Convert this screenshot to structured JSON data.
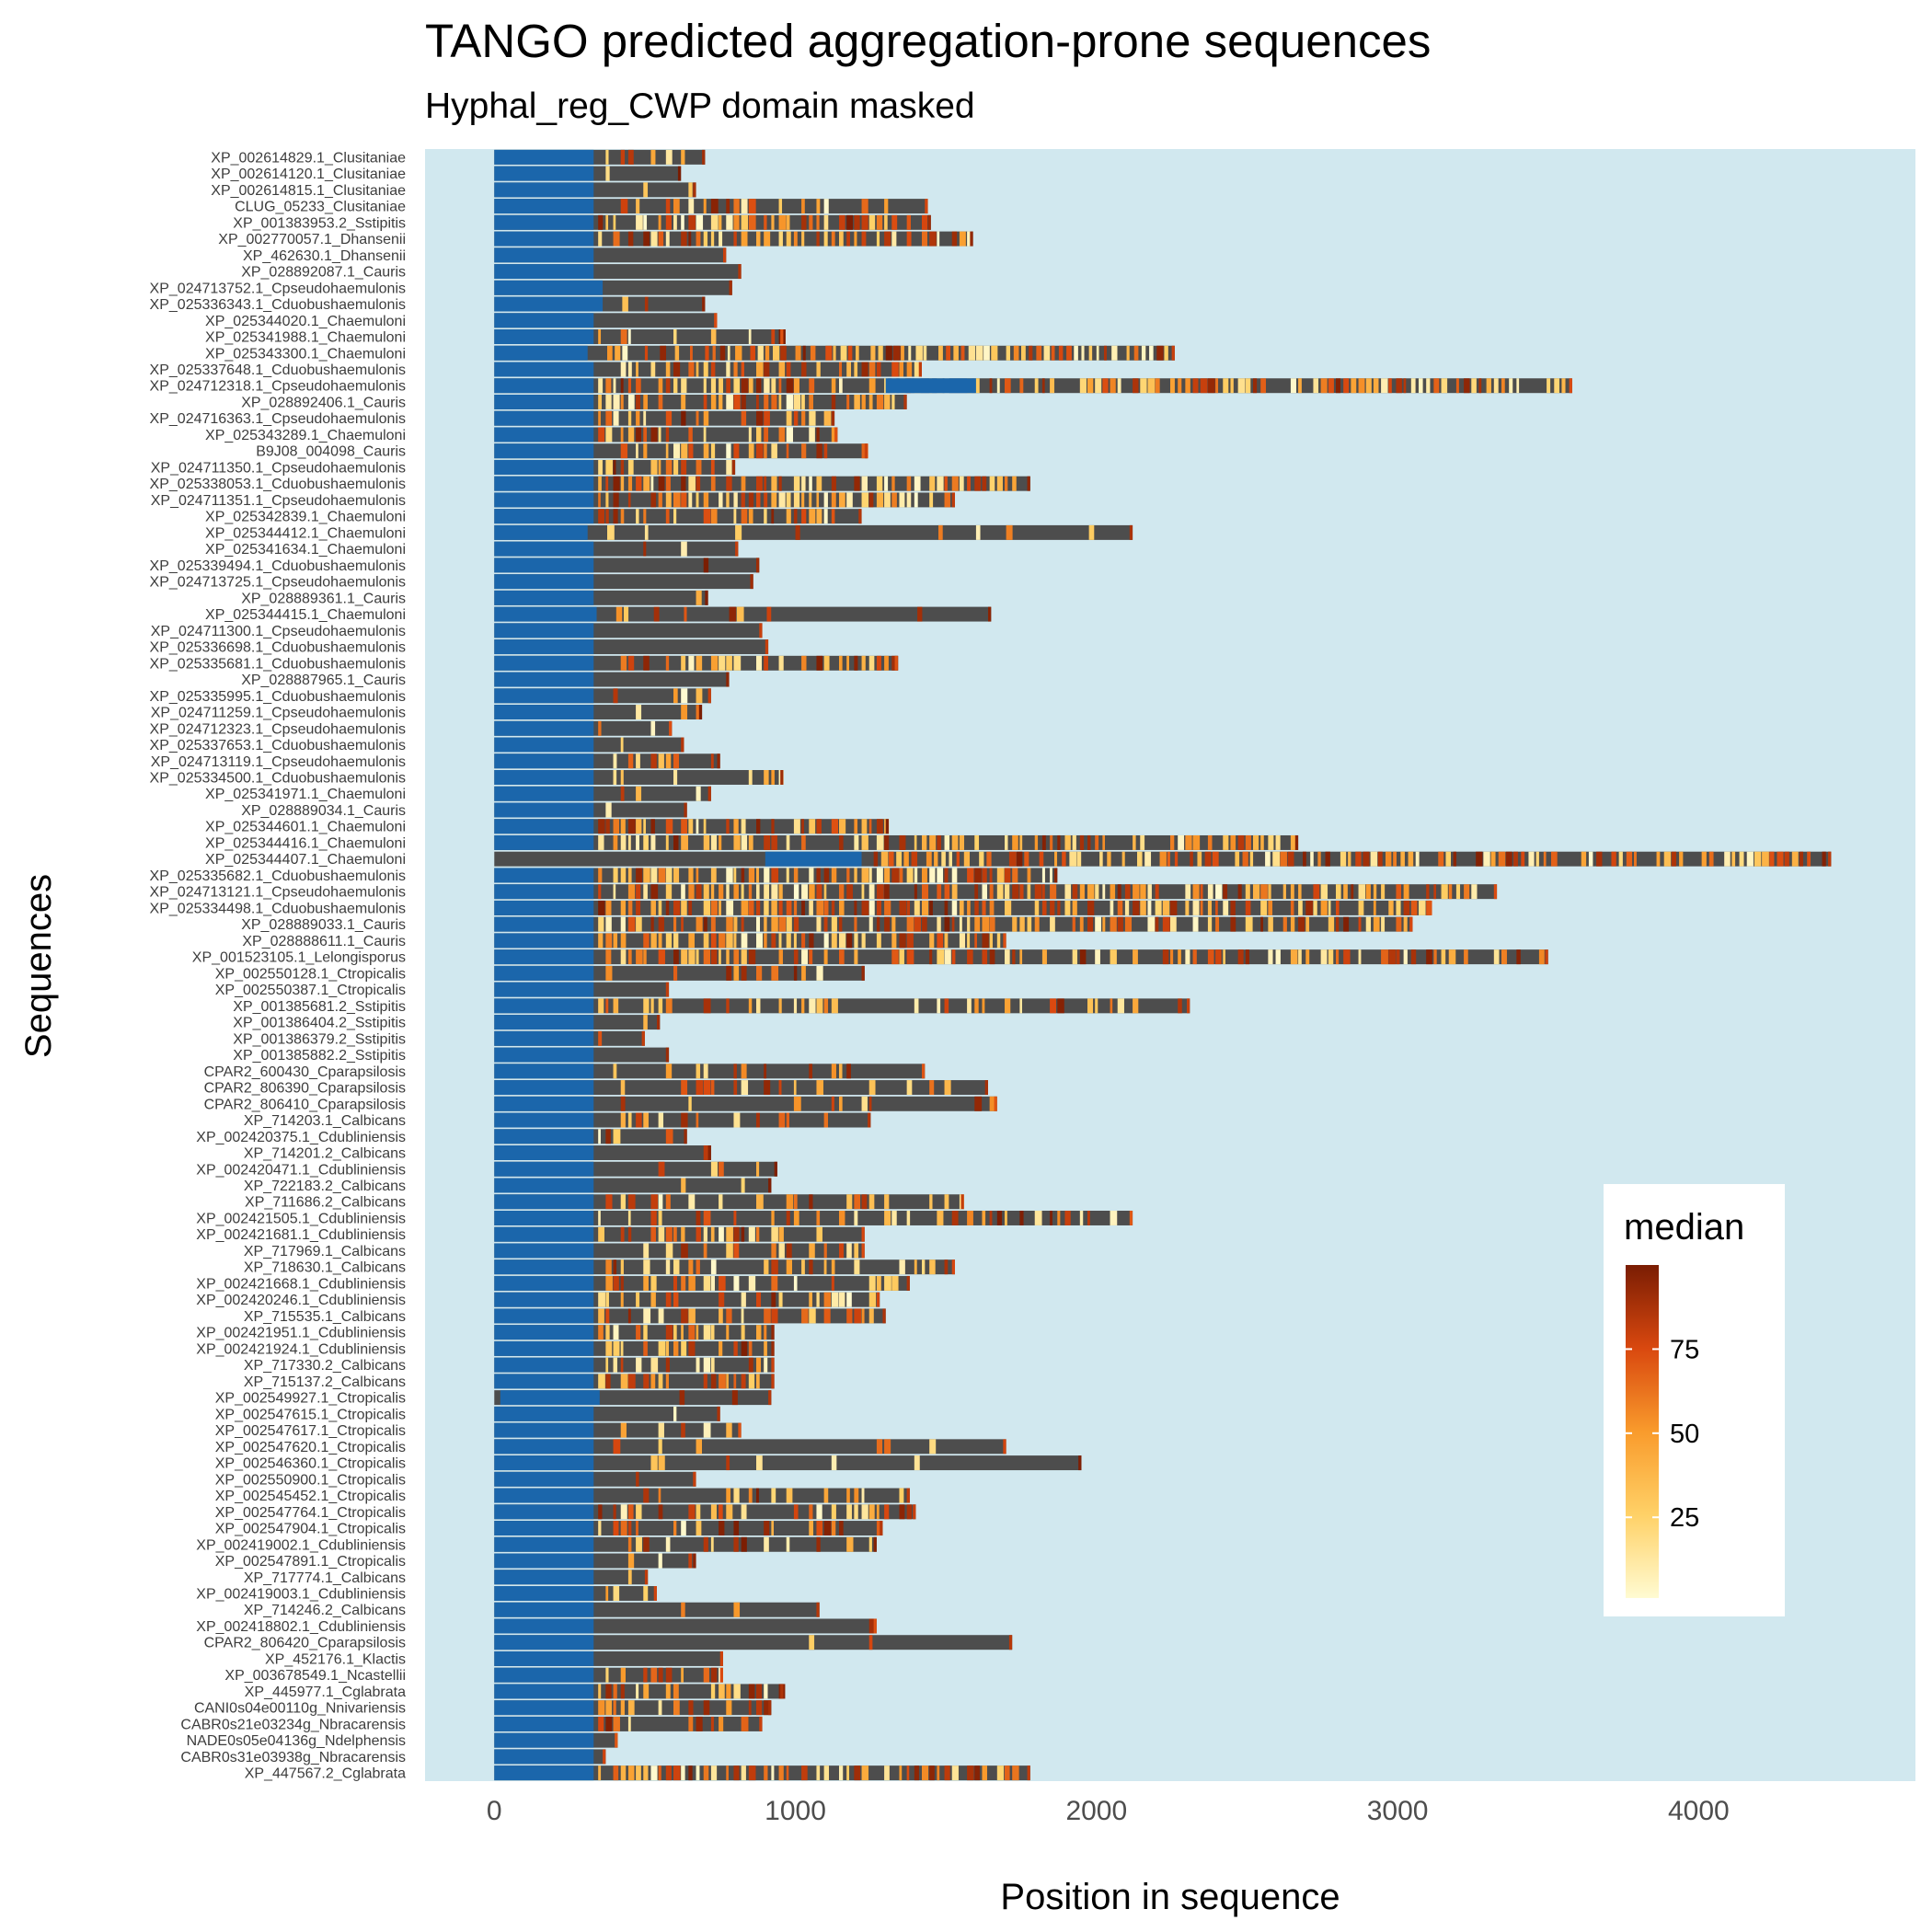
{
  "chart_data": {
    "type": "heatmap",
    "title": "TANGO predicted aggregation-prone sequences",
    "subtitle": "Hyphal_reg_CWP domain masked",
    "xlabel": "Position in sequence",
    "ylabel": "Sequences",
    "xlim": [
      -230,
      4720
    ],
    "x_ticks": [
      0,
      1000,
      2000,
      3000,
      4000
    ],
    "x_tick_labels": [
      "0",
      "1000",
      "2000",
      "3000",
      "4000"
    ],
    "grid": false,
    "legend": {
      "title": "median",
      "position": "right-bottom-inset",
      "range": [
        1,
        100
      ],
      "ticks": [
        25,
        50,
        75
      ],
      "tick_labels": [
        "25",
        "50",
        "75"
      ]
    },
    "colors": {
      "panel_background": "#d1e8ef",
      "sequence_bar": "#4d4d4d",
      "masked_domain": "#1b66ab",
      "scale_low": "#fffbd2",
      "scale_25": "#ffd167",
      "scale_50": "#f99b2c",
      "scale_75": "#d9480f",
      "scale_high": "#7a1d03"
    },
    "sequences": [
      {
        "name": "XP_002614829.1_Clusitaniae",
        "length": 700,
        "domain": [
          0,
          330
        ],
        "density": 0.5,
        "seed": 11
      },
      {
        "name": "XP_002614120.1_Clusitaniae",
        "length": 620,
        "domain": [
          0,
          330
        ],
        "density": 0.1,
        "seed": 12
      },
      {
        "name": "XP_002614815.1_Clusitaniae",
        "length": 670,
        "domain": [
          0,
          330
        ],
        "density": 0.1,
        "seed": 13
      },
      {
        "name": "CLUG_05233_Clusitaniae",
        "length": 1440,
        "domain": [
          0,
          330
        ],
        "density": 0.4,
        "seed": 14
      },
      {
        "name": "XP_001383953.2_Sstipitis",
        "length": 1450,
        "domain": [
          0,
          330
        ],
        "density": 0.8,
        "seed": 15
      },
      {
        "name": "XP_002770057.1_Dhansenii",
        "length": 1590,
        "domain": [
          0,
          330
        ],
        "density": 0.8,
        "seed": 16
      },
      {
        "name": "XP_462630.1_Dhansenii",
        "length": 770,
        "domain": [
          0,
          330
        ],
        "density": 0.05,
        "seed": 17
      },
      {
        "name": "XP_028892087.1_Cauris",
        "length": 820,
        "domain": [
          0,
          330
        ],
        "density": 0.05,
        "seed": 18
      },
      {
        "name": "XP_024713752.1_Cpseudohaemulonis",
        "length": 790,
        "domain": [
          0,
          360
        ],
        "density": 0.1,
        "seed": 19
      },
      {
        "name": "XP_025336343.1_Cduobushaemulonis",
        "length": 700,
        "domain": [
          0,
          360
        ],
        "density": 0.05,
        "seed": 20
      },
      {
        "name": "XP_025344020.1_Chaemuloni",
        "length": 740,
        "domain": [
          0,
          330
        ],
        "density": 0.1,
        "seed": 21
      },
      {
        "name": "XP_025341988.1_Chaemuloni",
        "length": 960,
        "domain": [
          0,
          330
        ],
        "density": 0.2,
        "seed": 22
      },
      {
        "name": "XP_025343300.1_Chaemuloni",
        "length": 2260,
        "domain": [
          0,
          310
        ],
        "density": 0.8,
        "seed": 23
      },
      {
        "name": "XP_025337648.1_Cduobushaemulonis",
        "length": 1420,
        "domain": [
          0,
          330
        ],
        "density": 0.6,
        "seed": 24
      },
      {
        "name": "XP_024712318.1_Cpseudohaemulonis",
        "length": 3580,
        "domain": [
          0,
          330
        ],
        "domain2": [
          1300,
          1600
        ],
        "density": 0.8,
        "seed": 25
      },
      {
        "name": "XP_028892406.1_Cauris",
        "length": 1370,
        "domain": [
          0,
          330
        ],
        "density": 0.7,
        "seed": 26
      },
      {
        "name": "XP_024716363.1_Cpseudohaemulonis",
        "length": 1130,
        "domain": [
          0,
          330
        ],
        "density": 0.6,
        "seed": 27
      },
      {
        "name": "XP_025343289.1_Chaemuloni",
        "length": 1140,
        "domain": [
          0,
          330
        ],
        "density": 0.5,
        "seed": 28
      },
      {
        "name": "B9J08_004098_Cauris",
        "length": 1240,
        "domain": [
          0,
          330
        ],
        "density": 0.5,
        "seed": 29
      },
      {
        "name": "XP_024711350.1_Cpseudohaemulonis",
        "length": 800,
        "domain": [
          0,
          330
        ],
        "density": 0.8,
        "seed": 30
      },
      {
        "name": "XP_025338053.1_Cduobushaemulonis",
        "length": 1780,
        "domain": [
          0,
          330
        ],
        "density": 0.8,
        "seed": 31
      },
      {
        "name": "XP_024711351.1_Cpseudohaemulonis",
        "length": 1530,
        "domain": [
          0,
          330
        ],
        "density": 0.8,
        "seed": 32
      },
      {
        "name": "XP_025342839.1_Chaemuloni",
        "length": 1220,
        "domain": [
          0,
          330
        ],
        "density": 0.7,
        "seed": 33
      },
      {
        "name": "XP_025344412.1_Chaemuloni",
        "length": 2120,
        "domain": [
          0,
          310
        ],
        "density": 0.05,
        "seed": 34
      },
      {
        "name": "XP_025341634.1_Chaemuloni",
        "length": 810,
        "domain": [
          0,
          330
        ],
        "density": 0.1,
        "seed": 35
      },
      {
        "name": "XP_025339494.1_Cduobushaemulonis",
        "length": 880,
        "domain": [
          0,
          330
        ],
        "density": 0.1,
        "seed": 36
      },
      {
        "name": "XP_024713725.1_Cpseudohaemulonis",
        "length": 860,
        "domain": [
          0,
          330
        ],
        "density": 0.2,
        "seed": 37
      },
      {
        "name": "XP_028889361.1_Cauris",
        "length": 710,
        "domain": [
          0,
          330
        ],
        "density": 0.2,
        "seed": 38
      },
      {
        "name": "XP_025344415.1_Chaemuloni",
        "length": 1650,
        "domain": [
          0,
          340
        ],
        "density": 0.2,
        "seed": 39
      },
      {
        "name": "XP_024711300.1_Cpseudohaemulonis",
        "length": 890,
        "domain": [
          0,
          330
        ],
        "density": 0.05,
        "seed": 40
      },
      {
        "name": "XP_025336698.1_Cduobushaemulonis",
        "length": 910,
        "domain": [
          0,
          330
        ],
        "density": 0.05,
        "seed": 41
      },
      {
        "name": "XP_025335681.1_Cduobushaemulonis",
        "length": 1340,
        "domain": [
          0,
          330
        ],
        "density": 0.6,
        "seed": 42
      },
      {
        "name": "XP_028887965.1_Cauris",
        "length": 780,
        "domain": [
          0,
          330
        ],
        "density": 0.05,
        "seed": 43
      },
      {
        "name": "XP_025335995.1_Cduobushaemulonis",
        "length": 720,
        "domain": [
          0,
          330
        ],
        "density": 0.2,
        "seed": 44
      },
      {
        "name": "XP_024711259.1_Cpseudohaemulonis",
        "length": 690,
        "domain": [
          0,
          330
        ],
        "density": 0.2,
        "seed": 45
      },
      {
        "name": "XP_024712323.1_Cpseudohaemulonis",
        "length": 590,
        "domain": [
          0,
          330
        ],
        "density": 0.3,
        "seed": 46
      },
      {
        "name": "XP_025337653.1_Cduobushaemulonis",
        "length": 630,
        "domain": [
          0,
          330
        ],
        "density": 0.3,
        "seed": 47
      },
      {
        "name": "XP_024713119.1_Cpseudohaemulonis",
        "length": 750,
        "domain": [
          0,
          330
        ],
        "density": 0.4,
        "seed": 48
      },
      {
        "name": "XP_025334500.1_Cduobushaemulonis",
        "length": 960,
        "domain": [
          0,
          330
        ],
        "density": 0.4,
        "seed": 49
      },
      {
        "name": "XP_025341971.1_Chaemuloni",
        "length": 720,
        "domain": [
          0,
          330
        ],
        "density": 0.2,
        "seed": 50
      },
      {
        "name": "XP_028889034.1_Cauris",
        "length": 640,
        "domain": [
          0,
          330
        ],
        "density": 0.2,
        "seed": 51
      },
      {
        "name": "XP_025344601.1_Chaemuloni",
        "length": 1310,
        "domain": [
          0,
          330
        ],
        "density": 0.7,
        "seed": 52
      },
      {
        "name": "XP_025344416.1_Chaemuloni",
        "length": 2670,
        "domain": [
          0,
          330
        ],
        "density": 0.7,
        "seed": 53
      },
      {
        "name": "XP_025344407.1_Chaemuloni",
        "length": 4440,
        "domain": [
          900,
          1220
        ],
        "density": 0.8,
        "seed": 54
      },
      {
        "name": "XP_025335682.1_Cduobushaemulonis",
        "length": 1870,
        "domain": [
          0,
          330
        ],
        "density": 0.8,
        "seed": 55
      },
      {
        "name": "XP_024713121.1_Cpseudohaemulonis",
        "length": 3330,
        "domain": [
          0,
          330
        ],
        "density": 0.8,
        "seed": 56
      },
      {
        "name": "XP_025334498.1_Cduobushaemulonis",
        "length": 3110,
        "domain": [
          0,
          330
        ],
        "density": 0.8,
        "seed": 57
      },
      {
        "name": "XP_028889033.1_Cauris",
        "length": 3050,
        "domain": [
          0,
          330
        ],
        "density": 0.8,
        "seed": 58
      },
      {
        "name": "XP_028888611.1_Cauris",
        "length": 1700,
        "domain": [
          0,
          330
        ],
        "density": 0.8,
        "seed": 59
      },
      {
        "name": "XP_001523105.1_Lelongisporus",
        "length": 3500,
        "domain": [
          0,
          330
        ],
        "density": 0.6,
        "seed": 60
      },
      {
        "name": "XP_002550128.1_Ctropicalis",
        "length": 1230,
        "domain": [
          0,
          330
        ],
        "density": 0.3,
        "seed": 61
      },
      {
        "name": "XP_002550387.1_Ctropicalis",
        "length": 580,
        "domain": [
          0,
          330
        ],
        "density": 0.05,
        "seed": 62
      },
      {
        "name": "XP_001385681.2_Sstipitis",
        "length": 2310,
        "domain": [
          0,
          330
        ],
        "density": 0.5,
        "seed": 63
      },
      {
        "name": "XP_001386404.2_Sstipitis",
        "length": 550,
        "domain": [
          0,
          330
        ],
        "density": 0.05,
        "seed": 64
      },
      {
        "name": "XP_001386379.2_Sstipitis",
        "length": 500,
        "domain": [
          0,
          330
        ],
        "density": 0.05,
        "seed": 65
      },
      {
        "name": "XP_001385882.2_Sstipitis",
        "length": 580,
        "domain": [
          0,
          330
        ],
        "density": 0.05,
        "seed": 66
      },
      {
        "name": "CPAR2_600430_Cparapsilosis",
        "length": 1430,
        "domain": [
          0,
          330
        ],
        "density": 0.2,
        "seed": 67
      },
      {
        "name": "CPAR2_806390_Cparapsilosis",
        "length": 1640,
        "domain": [
          0,
          330
        ],
        "density": 0.3,
        "seed": 68
      },
      {
        "name": "CPAR2_806410_Cparapsilosis",
        "length": 1670,
        "domain": [
          0,
          330
        ],
        "density": 0.2,
        "seed": 69
      },
      {
        "name": "XP_714203.1_Calbicans",
        "length": 1250,
        "domain": [
          0,
          330
        ],
        "density": 0.2,
        "seed": 70
      },
      {
        "name": "XP_002420375.1_Cdubliniensis",
        "length": 640,
        "domain": [
          0,
          330
        ],
        "density": 0.1,
        "seed": 71
      },
      {
        "name": "XP_714201.2_Calbicans",
        "length": 720,
        "domain": [
          0,
          330
        ],
        "density": 0.1,
        "seed": 72
      },
      {
        "name": "XP_002420471.1_Cdubliniensis",
        "length": 940,
        "domain": [
          0,
          330
        ],
        "density": 0.3,
        "seed": 73
      },
      {
        "name": "XP_722183.2_Calbicans",
        "length": 920,
        "domain": [
          0,
          330
        ],
        "density": 0.2,
        "seed": 74
      },
      {
        "name": "XP_711686.2_Calbicans",
        "length": 1560,
        "domain": [
          0,
          330
        ],
        "density": 0.4,
        "seed": 75
      },
      {
        "name": "XP_002421505.1_Cdubliniensis",
        "length": 2120,
        "domain": [
          0,
          330
        ],
        "density": 0.4,
        "seed": 76
      },
      {
        "name": "XP_002421681.1_Cdubliniensis",
        "length": 1230,
        "domain": [
          0,
          330
        ],
        "density": 0.6,
        "seed": 77
      },
      {
        "name": "XP_717969.1_Calbicans",
        "length": 1230,
        "domain": [
          0,
          330
        ],
        "density": 0.5,
        "seed": 78
      },
      {
        "name": "XP_718630.1_Calbicans",
        "length": 1530,
        "domain": [
          0,
          330
        ],
        "density": 0.5,
        "seed": 79
      },
      {
        "name": "XP_002421668.1_Cdubliniensis",
        "length": 1380,
        "domain": [
          0,
          330
        ],
        "density": 0.4,
        "seed": 80
      },
      {
        "name": "XP_002420246.1_Cdubliniensis",
        "length": 1280,
        "domain": [
          0,
          330
        ],
        "density": 0.5,
        "seed": 81
      },
      {
        "name": "XP_715535.1_Calbicans",
        "length": 1300,
        "domain": [
          0,
          330
        ],
        "density": 0.5,
        "seed": 82
      },
      {
        "name": "XP_002421951.1_Cdubliniensis",
        "length": 930,
        "domain": [
          0,
          330
        ],
        "density": 0.6,
        "seed": 83
      },
      {
        "name": "XP_002421924.1_Cdubliniensis",
        "length": 930,
        "domain": [
          0,
          330
        ],
        "density": 0.6,
        "seed": 84
      },
      {
        "name": "XP_717330.2_Calbicans",
        "length": 930,
        "domain": [
          0,
          330
        ],
        "density": 0.6,
        "seed": 85
      },
      {
        "name": "XP_715137.2_Calbicans",
        "length": 930,
        "domain": [
          0,
          330
        ],
        "density": 0.6,
        "seed": 86
      },
      {
        "name": "XP_002549927.1_Ctropicalis",
        "length": 920,
        "domain": [
          20,
          350
        ],
        "density": 0.05,
        "seed": 87
      },
      {
        "name": "XP_002547615.1_Ctropicalis",
        "length": 750,
        "domain": [
          0,
          330
        ],
        "density": 0.05,
        "seed": 88
      },
      {
        "name": "XP_002547617.1_Ctropicalis",
        "length": 820,
        "domain": [
          0,
          330
        ],
        "density": 0.1,
        "seed": 89
      },
      {
        "name": "XP_002547620.1_Ctropicalis",
        "length": 1700,
        "domain": [
          0,
          330
        ],
        "density": 0.1,
        "seed": 90
      },
      {
        "name": "XP_002546360.1_Ctropicalis",
        "length": 1950,
        "domain": [
          0,
          330
        ],
        "density": 0.1,
        "seed": 91
      },
      {
        "name": "XP_002550900.1_Ctropicalis",
        "length": 670,
        "domain": [
          0,
          330
        ],
        "density": 0.05,
        "seed": 92
      },
      {
        "name": "XP_002545452.1_Ctropicalis",
        "length": 1380,
        "domain": [
          0,
          330
        ],
        "density": 0.4,
        "seed": 93
      },
      {
        "name": "XP_002547764.1_Ctropicalis",
        "length": 1400,
        "domain": [
          0,
          330
        ],
        "density": 0.6,
        "seed": 94
      },
      {
        "name": "XP_002547904.1_Ctropicalis",
        "length": 1290,
        "domain": [
          0,
          330
        ],
        "density": 0.4,
        "seed": 95
      },
      {
        "name": "XP_002419002.1_Cdubliniensis",
        "length": 1270,
        "domain": [
          0,
          330
        ],
        "density": 0.2,
        "seed": 96
      },
      {
        "name": "XP_002547891.1_Ctropicalis",
        "length": 670,
        "domain": [
          0,
          330
        ],
        "density": 0.4,
        "seed": 97
      },
      {
        "name": "XP_717774.1_Calbicans",
        "length": 510,
        "domain": [
          0,
          330
        ],
        "density": 0.4,
        "seed": 98
      },
      {
        "name": "XP_002419003.1_Cdubliniensis",
        "length": 540,
        "domain": [
          0,
          330
        ],
        "density": 0.4,
        "seed": 99
      },
      {
        "name": "XP_714246.2_Calbicans",
        "length": 1080,
        "domain": [
          0,
          330
        ],
        "density": 0.05,
        "seed": 100
      },
      {
        "name": "XP_002418802.1_Cdubliniensis",
        "length": 1270,
        "domain": [
          0,
          330
        ],
        "density": 0.05,
        "seed": 101
      },
      {
        "name": "CPAR2_806420_Cparapsilosis",
        "length": 1720,
        "domain": [
          0,
          330
        ],
        "density": 0.05,
        "seed": 102
      },
      {
        "name": "XP_452176.1_Klactis",
        "length": 760,
        "domain": [
          0,
          330
        ],
        "density": 0.1,
        "seed": 103
      },
      {
        "name": "XP_003678549.1_Ncastellii",
        "length": 760,
        "domain": [
          0,
          330
        ],
        "density": 0.5,
        "seed": 104
      },
      {
        "name": "XP_445977.1_Cglabrata",
        "length": 960,
        "domain": [
          0,
          330
        ],
        "density": 0.5,
        "seed": 105
      },
      {
        "name": "CANI0s04e00110g_Nnivariensis",
        "length": 920,
        "domain": [
          0,
          330
        ],
        "density": 0.4,
        "seed": 106
      },
      {
        "name": "CABR0s21e03234g_Nbracarensis",
        "length": 890,
        "domain": [
          0,
          330
        ],
        "density": 0.4,
        "seed": 107
      },
      {
        "name": "NADE0s05e04136g_Ndelphensis",
        "length": 410,
        "domain": [
          0,
          330
        ],
        "density": 0.1,
        "seed": 108
      },
      {
        "name": "CABR0s31e03938g_Nbracarensis",
        "length": 370,
        "domain": [
          0,
          330
        ],
        "density": 0.05,
        "seed": 109
      },
      {
        "name": "XP_447567.2_Cglabrata",
        "length": 1780,
        "domain": [
          0,
          330
        ],
        "density": 0.8,
        "seed": 110
      }
    ]
  }
}
